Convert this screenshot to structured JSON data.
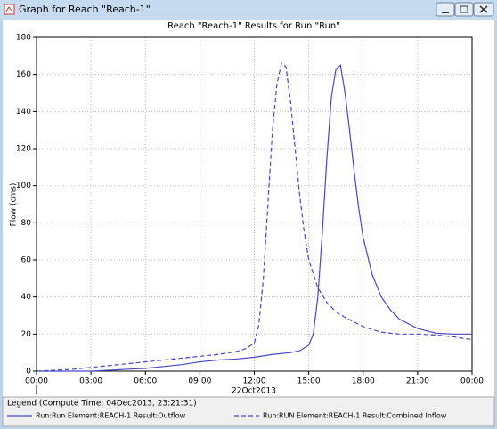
{
  "window": {
    "title": "Graph for Reach \"Reach-1\""
  },
  "chart_data": {
    "type": "line",
    "title": "Reach \"Reach-1\" Results for Run \"Run\"",
    "y_label": "Flow (cms)",
    "x_sublabel": "22Oct2013",
    "legend_title": "Legend (Compute Time: 04Dec2013, 23:21:31)",
    "xlim": [
      0,
      24
    ],
    "ylim": [
      0,
      180
    ],
    "xticks": [
      {
        "value": 0,
        "label": "00:00"
      },
      {
        "value": 3,
        "label": "03:00"
      },
      {
        "value": 6,
        "label": "06:00"
      },
      {
        "value": 9,
        "label": "09:00"
      },
      {
        "value": 12,
        "label": "12:00"
      },
      {
        "value": 15,
        "label": "15:00"
      },
      {
        "value": 18,
        "label": "18:00"
      },
      {
        "value": 21,
        "label": "21:00"
      },
      {
        "value": 24,
        "label": "00:00"
      }
    ],
    "yticks": [
      0,
      20,
      40,
      60,
      80,
      100,
      120,
      140,
      160,
      180
    ],
    "grid": true,
    "series": [
      {
        "name": "Run:Run Element:REACH-1 Result:Outflow",
        "color": "#4a46c8",
        "dash": false,
        "x": [
          0,
          1,
          2,
          3,
          4,
          5,
          6,
          7,
          8,
          9,
          10,
          11,
          12,
          13,
          14,
          14.5,
          15,
          15.25,
          15.5,
          15.75,
          16,
          16.25,
          16.5,
          16.75,
          17,
          17.25,
          17.5,
          17.75,
          18,
          18.5,
          19,
          19.5,
          20,
          21,
          22,
          23,
          24
        ],
        "values": [
          0,
          0,
          0,
          0,
          0.5,
          1,
          1.5,
          2.5,
          3.5,
          5,
          6,
          6.5,
          7.5,
          9,
          10,
          11,
          14,
          20,
          40,
          75,
          115,
          148,
          163,
          165,
          150,
          130,
          108,
          88,
          72,
          52,
          40,
          33,
          28,
          23,
          20.5,
          20,
          20
        ]
      },
      {
        "name": "Run:RUN Element:REACH-1 Result:Combined Inflow",
        "color": "#4a46c8",
        "dash": true,
        "x": [
          0,
          1,
          2,
          3,
          4,
          5,
          6,
          7,
          8,
          9,
          10,
          11,
          11.5,
          12,
          12.25,
          12.5,
          12.75,
          13,
          13.25,
          13.5,
          13.75,
          14,
          14.25,
          14.5,
          14.75,
          15,
          15.5,
          16,
          16.5,
          17,
          18,
          19,
          20,
          21,
          22,
          23,
          24
        ],
        "values": [
          0,
          0.5,
          1,
          2,
          3,
          4,
          5,
          6,
          7,
          8,
          9,
          10.5,
          12,
          15,
          25,
          50,
          90,
          130,
          155,
          166,
          164,
          145,
          120,
          95,
          75,
          60,
          45,
          37,
          32,
          29,
          24,
          21,
          20,
          20,
          19.5,
          18.5,
          17
        ]
      }
    ]
  }
}
